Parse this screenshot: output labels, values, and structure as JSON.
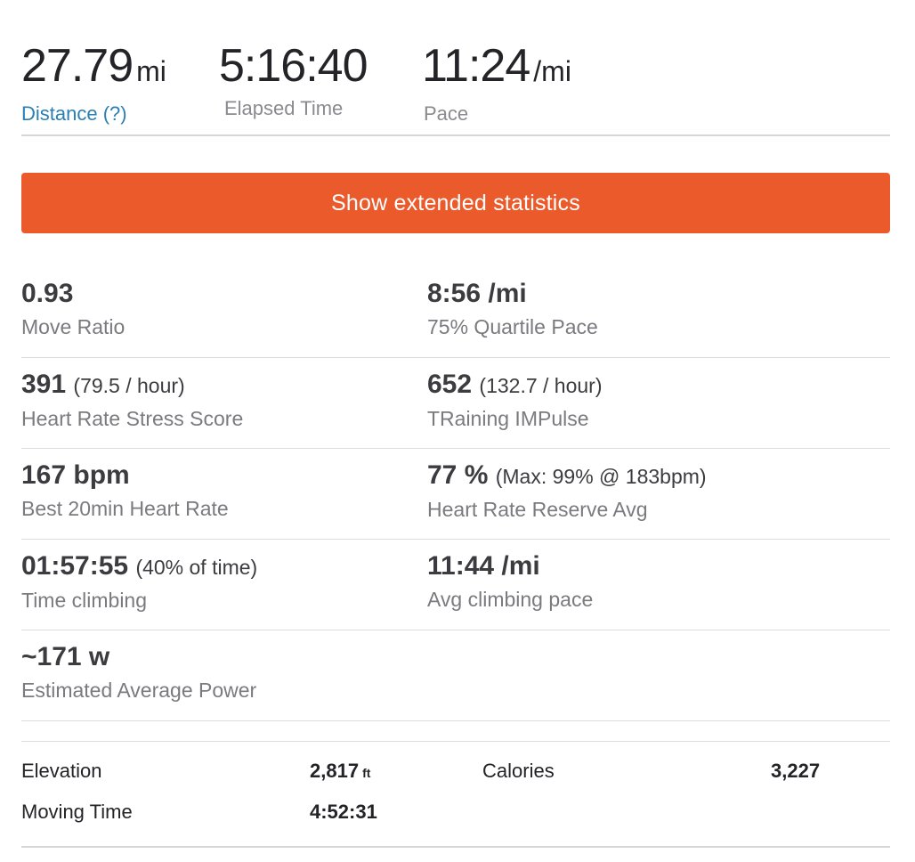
{
  "summary": {
    "distance": {
      "value": "27.79",
      "unit": "mi",
      "label": "Distance (?)"
    },
    "elapsed": {
      "value": "5:16:40",
      "label": "Elapsed Time"
    },
    "pace": {
      "value": "11:24",
      "unit": "/mi",
      "label": "Pace"
    }
  },
  "extended_button": {
    "label": "Show extended statistics"
  },
  "stats": [
    {
      "left": {
        "value": "0.93",
        "extra": "",
        "label": "Move Ratio"
      },
      "right": {
        "value": "8:56 /mi",
        "extra": "",
        "label": "75% Quartile Pace"
      }
    },
    {
      "left": {
        "value": "391",
        "extra": "(79.5 / hour)",
        "label": "Heart Rate Stress Score"
      },
      "right": {
        "value": "652",
        "extra": "(132.7 / hour)",
        "label": "TRaining IMPulse"
      }
    },
    {
      "left": {
        "value": "167 bpm",
        "extra": "",
        "label": "Best 20min Heart Rate"
      },
      "right": {
        "value": "77 %",
        "extra": "(Max: 99% @ 183bpm)",
        "label": "Heart Rate Reserve Avg"
      }
    },
    {
      "left": {
        "value": "01:57:55",
        "extra": "(40% of time)",
        "label": "Time climbing"
      },
      "right": {
        "value": "11:44 /mi",
        "extra": "",
        "label": "Avg climbing pace"
      }
    },
    {
      "left": {
        "value": "~171 w",
        "extra": "",
        "label": "Estimated Average Power"
      }
    }
  ],
  "bottom": {
    "elevation": {
      "label": "Elevation",
      "value": "2,817",
      "unit": "ft"
    },
    "calories": {
      "label": "Calories",
      "value": "3,227"
    },
    "moving_time": {
      "label": "Moving Time",
      "value": "4:52:31"
    }
  },
  "colors": {
    "accent": "#ea5a2b",
    "link": "#2a7fb3"
  }
}
